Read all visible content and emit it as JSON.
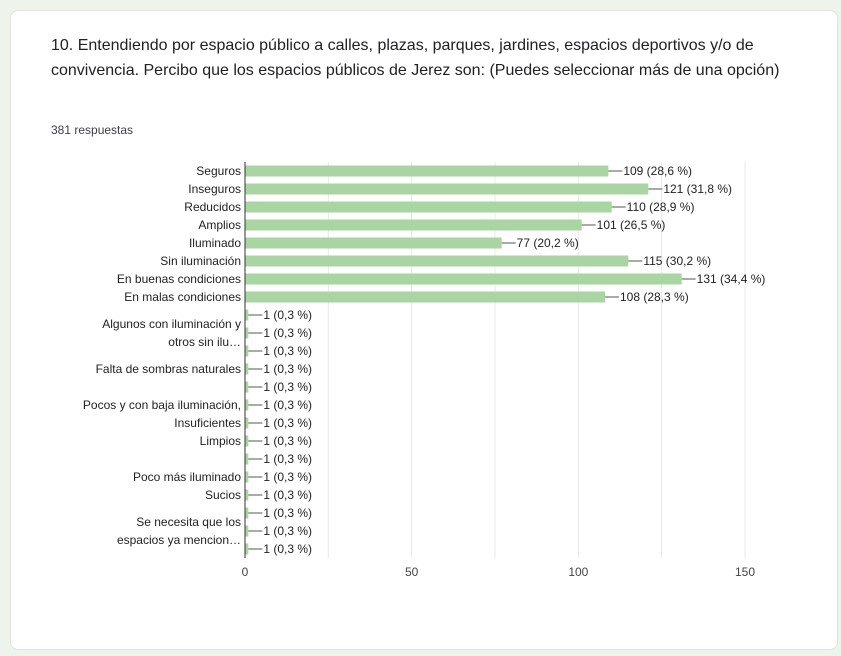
{
  "question": {
    "title": "10. Entendiendo por espacio público a calles, plazas, parques, jardines, espacios deportivos y/o de convivencia. Percibo que los espacios públicos de Jerez son: (Puedes seleccionar más de una opción)",
    "responses": "381 respuestas"
  },
  "colors": {
    "bar": "#a8d5a2",
    "grid": "#e8e8e8",
    "axis": "#333333",
    "text": "#222222"
  },
  "chart_data": {
    "type": "bar",
    "orientation": "horizontal",
    "title": "",
    "xlabel": "",
    "ylabel": "",
    "xlim": [
      0,
      150
    ],
    "x_ticks": [
      0,
      50,
      100,
      150
    ],
    "grid": true,
    "categories": [
      "Seguros",
      "Inseguros",
      "Reducidos",
      "Amplios",
      "Iluminado",
      "Sin iluminación",
      "En buenas condiciones",
      "En malas condiciones",
      "",
      "Algunos con iluminación y otros sin ilu…",
      "",
      "Falta de sombras naturales",
      "",
      "Pocos y con baja iluminación,",
      "Insuficientes",
      "Limpios",
      "",
      "Poco más iluminado",
      "Sucios",
      "",
      "Se necesita que los espacios ya mencion…",
      ""
    ],
    "values": [
      109,
      121,
      110,
      101,
      77,
      115,
      131,
      108,
      1,
      1,
      1,
      1,
      1,
      1,
      1,
      1,
      1,
      1,
      1,
      1,
      1,
      1
    ],
    "value_labels": [
      "109 (28,6 %)",
      "121 (31,8 %)",
      "110 (28,9 %)",
      "101 (26,5 %)",
      "77 (20,2 %)",
      "115 (30,2 %)",
      "131 (34,4 %)",
      "108 (28,3 %)",
      "1 (0,3 %)",
      "1 (0,3 %)",
      "1 (0,3 %)",
      "1 (0,3 %)",
      "1 (0,3 %)",
      "1 (0,3 %)",
      "1 (0,3 %)",
      "1 (0,3 %)",
      "1 (0,3 %)",
      "1 (0,3 %)",
      "1 (0,3 %)",
      "1 (0,3 %)",
      "1 (0,3 %)",
      "1 (0,3 %)"
    ]
  }
}
